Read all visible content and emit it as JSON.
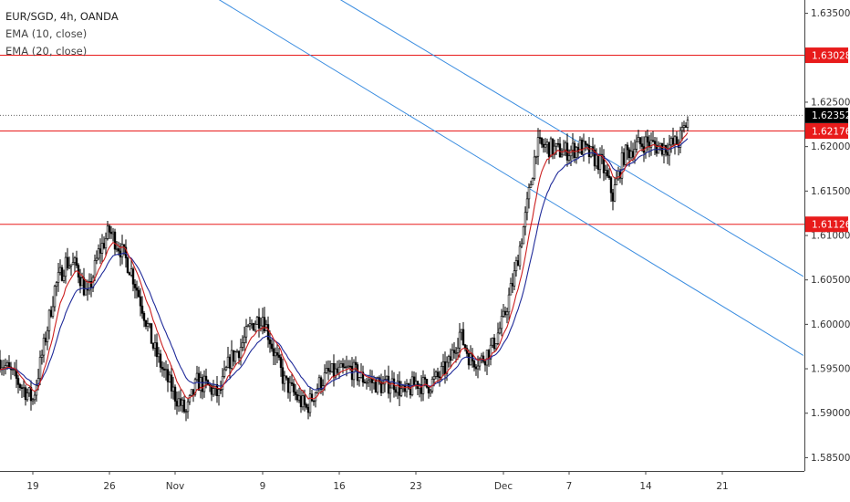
{
  "header": {
    "symbol_line": "EUR/SGD, 4h, OANDA",
    "indicator_1": "EMA (10, close)",
    "indicator_2": "EMA (20, close)"
  },
  "colors": {
    "background": "#ffffff",
    "grid": "#d9d9d9",
    "horizontal_level": "#e81b1b",
    "trendline": "#3b8de0",
    "ema_fast": "#cc1f1f",
    "ema_slow": "#1f2a99",
    "candle": "#000000",
    "last_price_badge": "#000000"
  },
  "chart_data": {
    "type": "candlestick",
    "symbol": "EUR/SGD",
    "timeframe": "4h",
    "source": "OANDA",
    "ylim": [
      1.5835,
      1.6365
    ],
    "x_range_days": [
      -3.0,
      70.5
    ],
    "y_ticks": [
      "1.63500",
      "1.62500",
      "1.62000",
      "1.61500",
      "1.61000",
      "1.60500",
      "1.60000",
      "1.59500",
      "1.59000",
      "1.58500"
    ],
    "x_ticks": [
      {
        "label": "19",
        "day": 0
      },
      {
        "label": "26",
        "day": 7
      },
      {
        "label": "Nov",
        "day": 13
      },
      {
        "label": "9",
        "day": 21
      },
      {
        "label": "16",
        "day": 28
      },
      {
        "label": "23",
        "day": 35
      },
      {
        "label": "Dec",
        "day": 43
      },
      {
        "label": "7",
        "day": 49
      },
      {
        "label": "14",
        "day": 56
      },
      {
        "label": "21",
        "day": 63
      }
    ],
    "horizontal_levels": [
      {
        "label": "1.63028",
        "value": 1.63028
      },
      {
        "label": "1.62176",
        "value": 1.62176
      },
      {
        "label": "1.61126",
        "value": 1.61126
      }
    ],
    "last_price": {
      "label": "1.62352",
      "value": 1.62352
    },
    "trendlines": [
      {
        "points": [
          [
            12.4,
            1.64
          ],
          [
            70.4,
            1.5965
          ]
        ]
      },
      {
        "points": [
          [
            23.4,
            1.64
          ],
          [
            70.4,
            1.6054
          ]
        ]
      }
    ],
    "series": [
      {
        "name": "Close",
        "x": [
          -3,
          -2,
          -1,
          0,
          1,
          2,
          3,
          4,
          5,
          6,
          7,
          8,
          9,
          10,
          11,
          12,
          13,
          14,
          15,
          16,
          17,
          18,
          19,
          20,
          21,
          22,
          23,
          24,
          25,
          26,
          27,
          28,
          29,
          30,
          31,
          32,
          33,
          34,
          35,
          36,
          37,
          38,
          39,
          40,
          41,
          42,
          43,
          44,
          45,
          46,
          47,
          48,
          49,
          50,
          51,
          52,
          53,
          54,
          55,
          56,
          57,
          58,
          59,
          60
        ],
        "values": [
          1.596,
          1.5945,
          1.593,
          1.5915,
          1.5975,
          1.604,
          1.607,
          1.6065,
          1.603,
          1.608,
          1.6105,
          1.6085,
          1.606,
          1.602,
          1.5975,
          1.5945,
          1.592,
          1.59,
          1.5935,
          1.593,
          1.592,
          1.596,
          1.5975,
          1.6,
          1.601,
          1.597,
          1.5935,
          1.592,
          1.5905,
          1.593,
          1.5945,
          1.5945,
          1.595,
          1.594,
          1.5935,
          1.593,
          1.5935,
          1.592,
          1.5935,
          1.593,
          1.594,
          1.5955,
          1.599,
          1.596,
          1.596,
          1.5975,
          1.6005,
          1.6055,
          1.612,
          1.62,
          1.62,
          1.6195,
          1.6195,
          1.62,
          1.619,
          1.618,
          1.6145,
          1.619,
          1.62,
          1.6205,
          1.62,
          1.62,
          1.6205,
          1.6235
        ]
      }
    ]
  }
}
